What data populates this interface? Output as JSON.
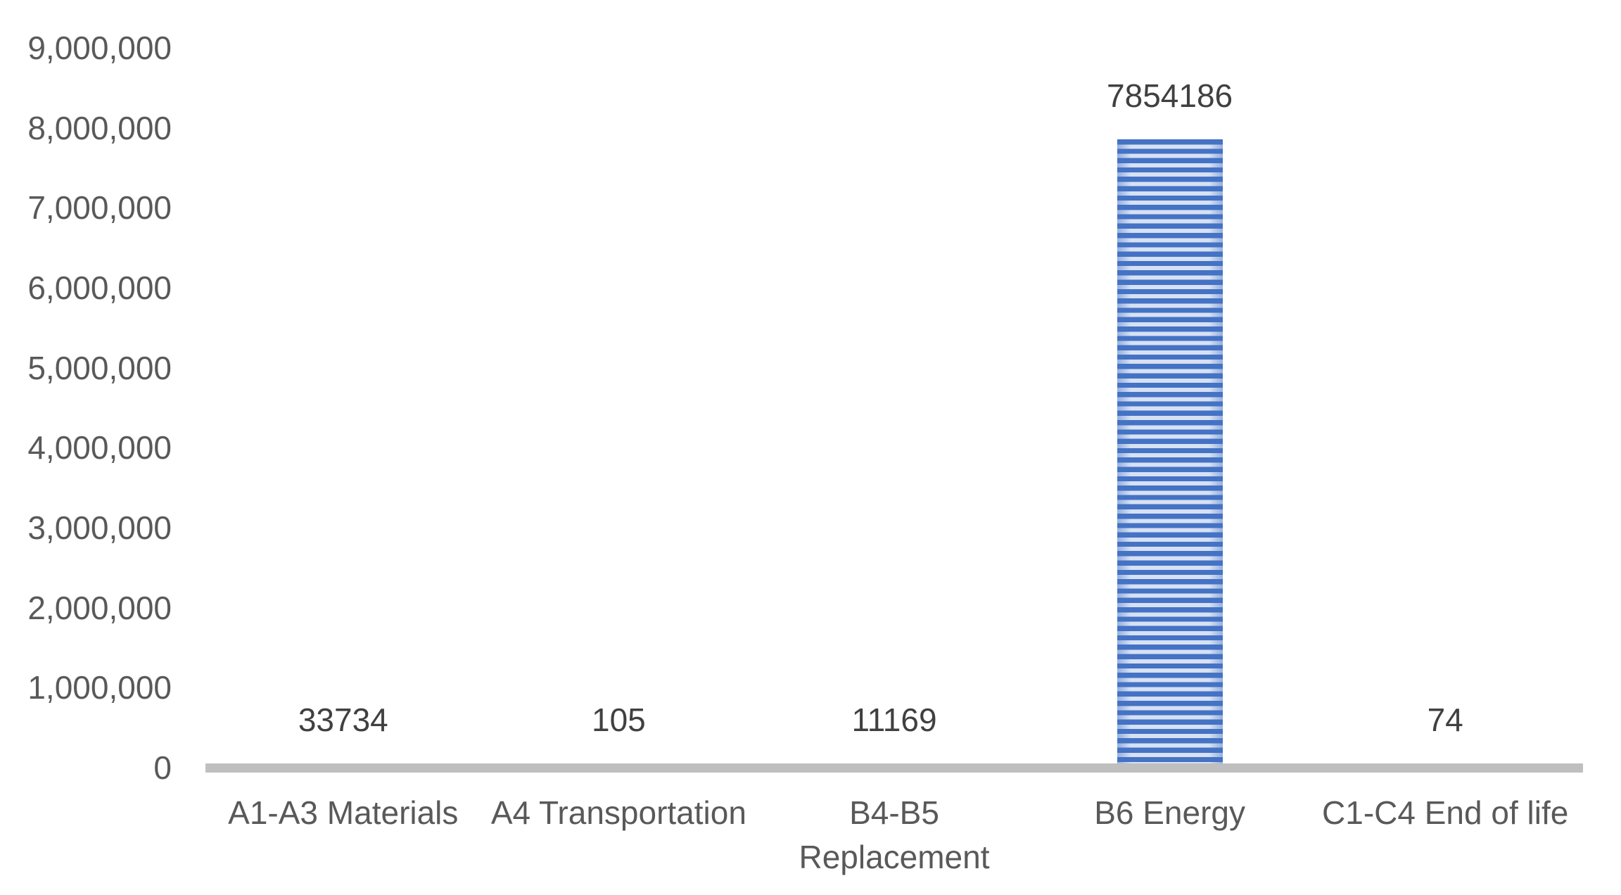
{
  "chart_data": {
    "type": "bar",
    "title": "",
    "xlabel": "",
    "ylabel": "",
    "categories": [
      "A1-A3 Materials",
      "A4 Transportation",
      "B4-B5\nReplacement",
      "B6 Energy",
      "C1-C4 End of life"
    ],
    "values": [
      33734,
      105,
      11169,
      7854186,
      74
    ],
    "data_labels": [
      "33734",
      "105",
      "11169",
      "7854186",
      "74"
    ],
    "ylim": [
      0,
      9000000
    ],
    "ytick_step": 1000000,
    "yticklabels": [
      "0",
      "1,000,000",
      "2,000,000",
      "3,000,000",
      "4,000,000",
      "5,000,000",
      "6,000,000",
      "7,000,000",
      "8,000,000",
      "9,000,000"
    ],
    "grid": false,
    "legend": false,
    "colors": {
      "bar_stripe_dark": "#4472C4",
      "bar_stripe_light": "#D7E1F3",
      "axis_line": "#BFBFBF",
      "axis_text": "#595959",
      "data_label_text": "#404040",
      "background": "#FFFFFF"
    },
    "bar_pattern": "horizontal-stripes"
  }
}
